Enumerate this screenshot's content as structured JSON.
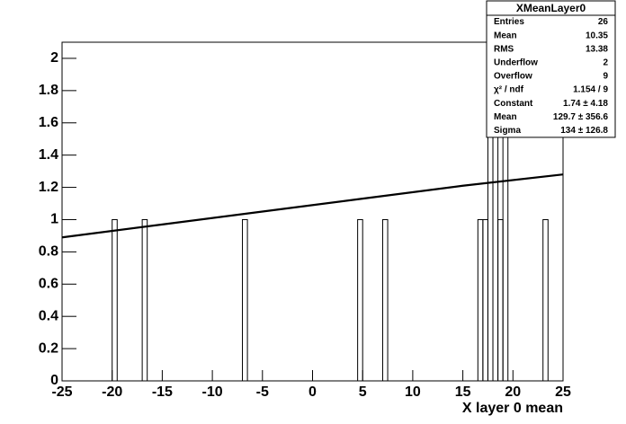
{
  "chart_data": {
    "type": "histogram",
    "x_label": "X layer 0 mean",
    "bins": [
      -25,
      -20,
      -19.5,
      -17,
      -16.5,
      -7,
      -6.5,
      4.5,
      5,
      7,
      7.5,
      16.5,
      17,
      17.5,
      18,
      18.5,
      19,
      19.5,
      23,
      23.5,
      25
    ],
    "counts": [
      0,
      1,
      0,
      1,
      0,
      1,
      0,
      1,
      0,
      1,
      0,
      1,
      1,
      2,
      2,
      1,
      2,
      0,
      1,
      0
    ],
    "color": "#000000",
    "fit": {
      "color": "#000000",
      "x": [
        -25,
        -15,
        -5,
        5,
        15,
        25
      ],
      "y": [
        0.89,
        0.97,
        1.05,
        1.13,
        1.21,
        1.28
      ]
    },
    "xlim": [
      -25,
      25
    ],
    "xticks": [
      -25,
      -20,
      -15,
      -10,
      -5,
      0,
      5,
      10,
      15,
      20,
      25
    ],
    "ylim": [
      0,
      2.1
    ],
    "yticks": [
      0,
      0.2,
      0.4,
      0.6,
      0.8,
      1,
      1.2,
      1.4,
      1.6,
      1.8,
      2
    ],
    "stats": {
      "title": "XMeanLayer0",
      "rows": [
        [
          "Entries",
          26
        ],
        [
          "Mean",
          10.35
        ],
        [
          "RMS",
          13.38
        ],
        [
          "Underflow",
          2
        ],
        [
          "Overflow",
          9
        ],
        [
          "χ² / ndf",
          "1.154 / 9"
        ],
        [
          "Constant",
          "1.74 ± 4.18"
        ],
        [
          "Mean",
          "129.7 ± 356.6"
        ],
        [
          "Sigma",
          "134 ± 126.8"
        ]
      ]
    }
  }
}
